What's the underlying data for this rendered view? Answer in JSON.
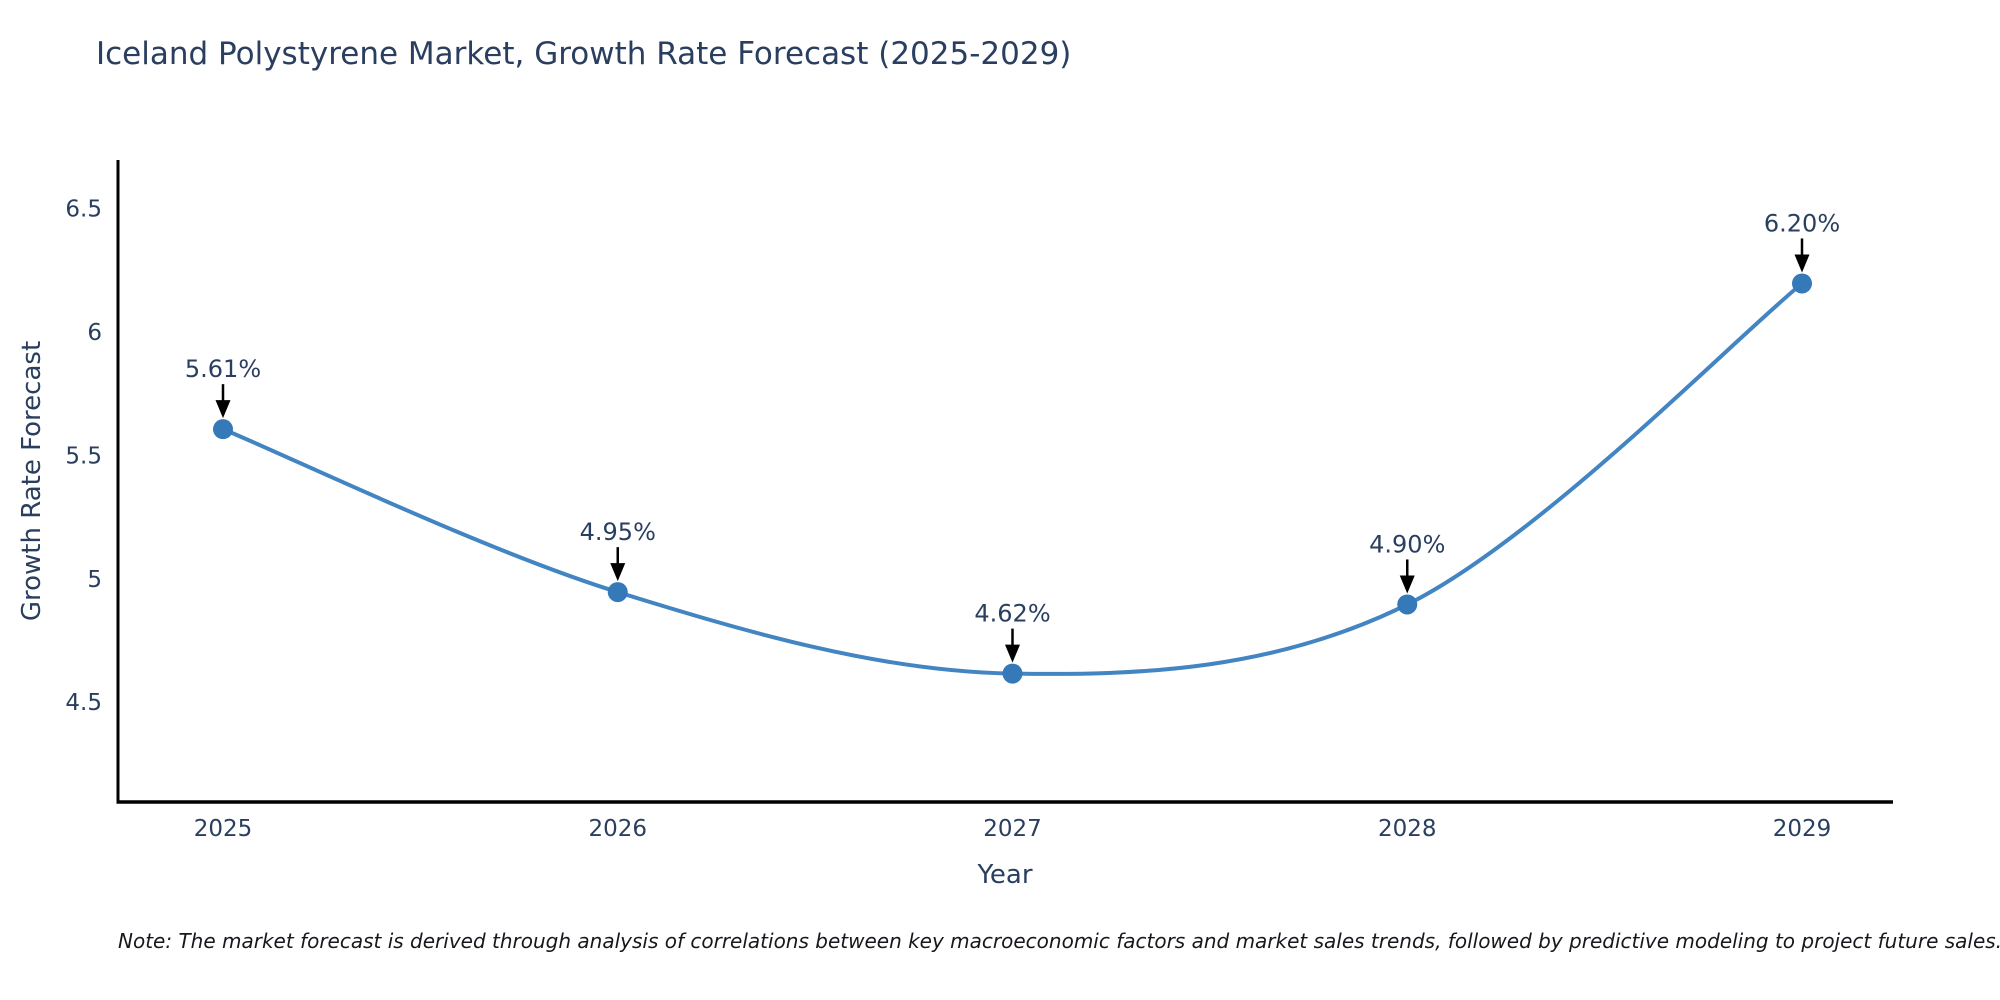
{
  "note": "Note: The market forecast is derived through analysis of correlations between key macroeconomic factors and market sales trends, followed by predictive modeling to project future sales.",
  "chart_data": {
    "type": "line",
    "line_shape": "spline",
    "title": "Iceland Polystyrene Market, Growth Rate Forecast (2025-2029)",
    "categories": [
      "2025",
      "2026",
      "2027",
      "2028",
      "2029"
    ],
    "series": [
      {
        "name": "Growth Rate Forecast",
        "values": [
          5.61,
          4.95,
          4.62,
          4.9,
          6.2
        ]
      }
    ],
    "point_labels": [
      "5.61%",
      "4.95%",
      "4.62%",
      "4.90%",
      "6.20%"
    ],
    "xlabel": "Year",
    "ylabel": "Growth Rate Forecast",
    "y_ticks": [
      4.5,
      5,
      5.5,
      6,
      6.5
    ],
    "ylim": [
      4.1,
      6.7
    ],
    "grid": false,
    "legend_position": "none",
    "annotation_style": "black-down-arrow",
    "colors": {
      "line": "#4285c2",
      "marker": "#3579b8",
      "arrow": "#000000",
      "axis": "#000000",
      "text": "#2a3f5f",
      "note_text": "#16181d"
    }
  }
}
